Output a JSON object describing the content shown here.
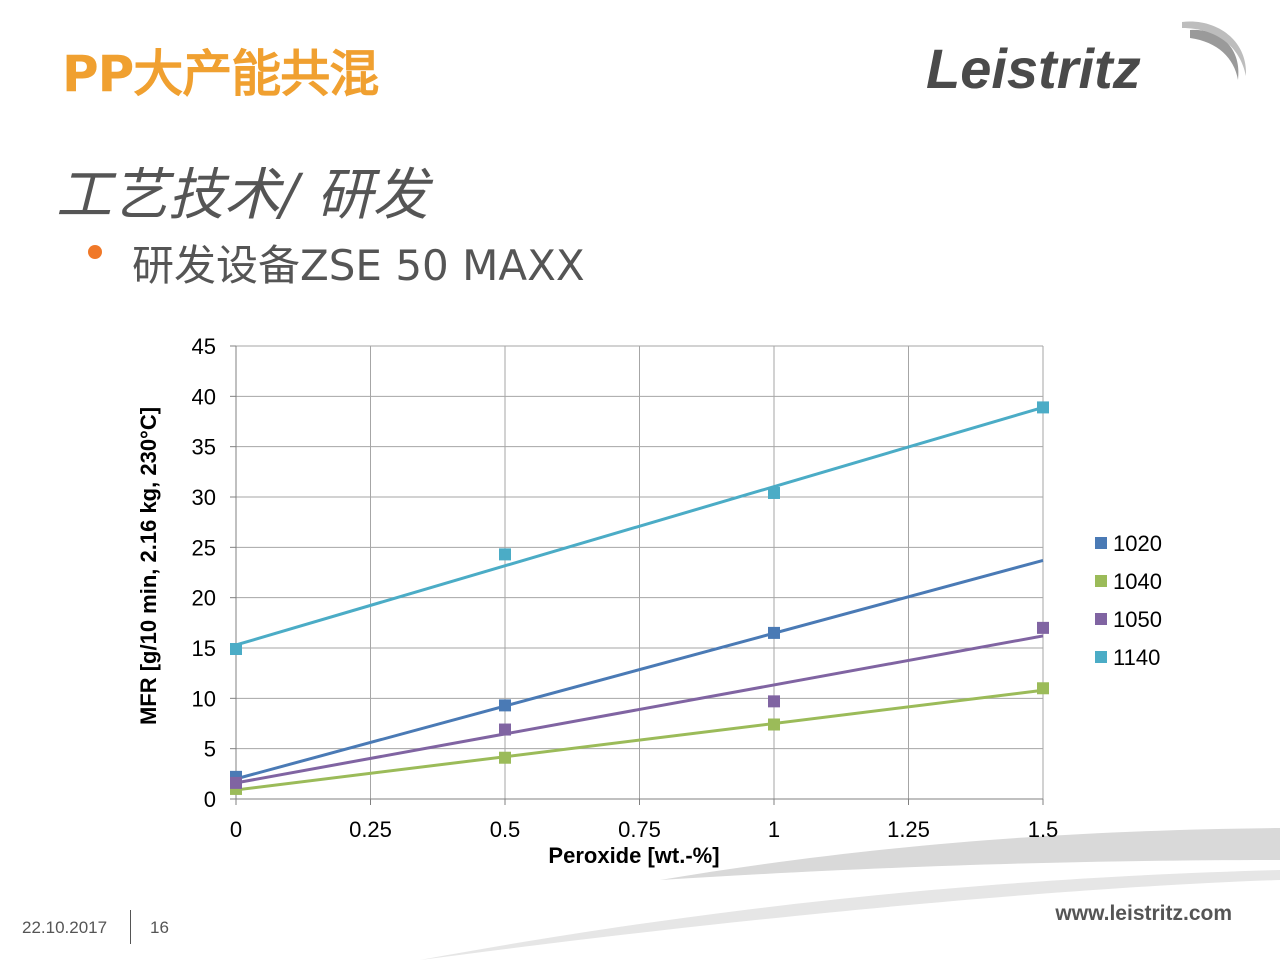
{
  "slide": {
    "title": "PP大产能共混",
    "subtitle": "工艺技术/ 研发",
    "bullet": "研发设备ZSE 50 MAXX",
    "logo_text": "Leistritz",
    "footer_date": "22.10.2017",
    "footer_page": "16",
    "footer_url": "www.leistritz.com"
  },
  "colors": {
    "title": "#f0a030",
    "bullet": "#f07828"
  },
  "chart_data": {
    "type": "scatter",
    "xlabel": "Peroxide [wt.-%]",
    "ylabel": "MFR [g/10 min, 2.16 kg, 230°C]",
    "xlim": [
      0,
      1.5
    ],
    "ylim": [
      0,
      45
    ],
    "x_ticks": [
      "0",
      "0.25",
      "0.5",
      "0.75",
      "1",
      "1.25",
      "1.5"
    ],
    "y_ticks": [
      "0",
      "5",
      "10",
      "15",
      "20",
      "25",
      "30",
      "35",
      "40",
      "45"
    ],
    "grid": true,
    "legend_position": "right",
    "series": [
      {
        "name": "1020",
        "color": "#4a7ab5",
        "x": [
          0,
          0.5,
          1
        ],
        "y": [
          2.2,
          9.3,
          16.5
        ],
        "trend": [
          2.0,
          23.7
        ]
      },
      {
        "name": "1040",
        "color": "#9bbb59",
        "x": [
          0,
          0.5,
          1,
          1.5
        ],
        "y": [
          1.0,
          4.1,
          7.4,
          11.0
        ],
        "trend": [
          0.9,
          10.8
        ]
      },
      {
        "name": "1050",
        "color": "#8064a2",
        "x": [
          0,
          0.5,
          1,
          1.5
        ],
        "y": [
          1.6,
          6.9,
          9.7,
          17.0
        ],
        "trend": [
          1.6,
          16.2
        ]
      },
      {
        "name": "1140",
        "color": "#4bacc6",
        "x": [
          0,
          0.5,
          1,
          1.5
        ],
        "y": [
          14.9,
          24.3,
          30.4,
          38.9
        ],
        "trend": [
          15.3,
          38.9
        ]
      }
    ]
  }
}
